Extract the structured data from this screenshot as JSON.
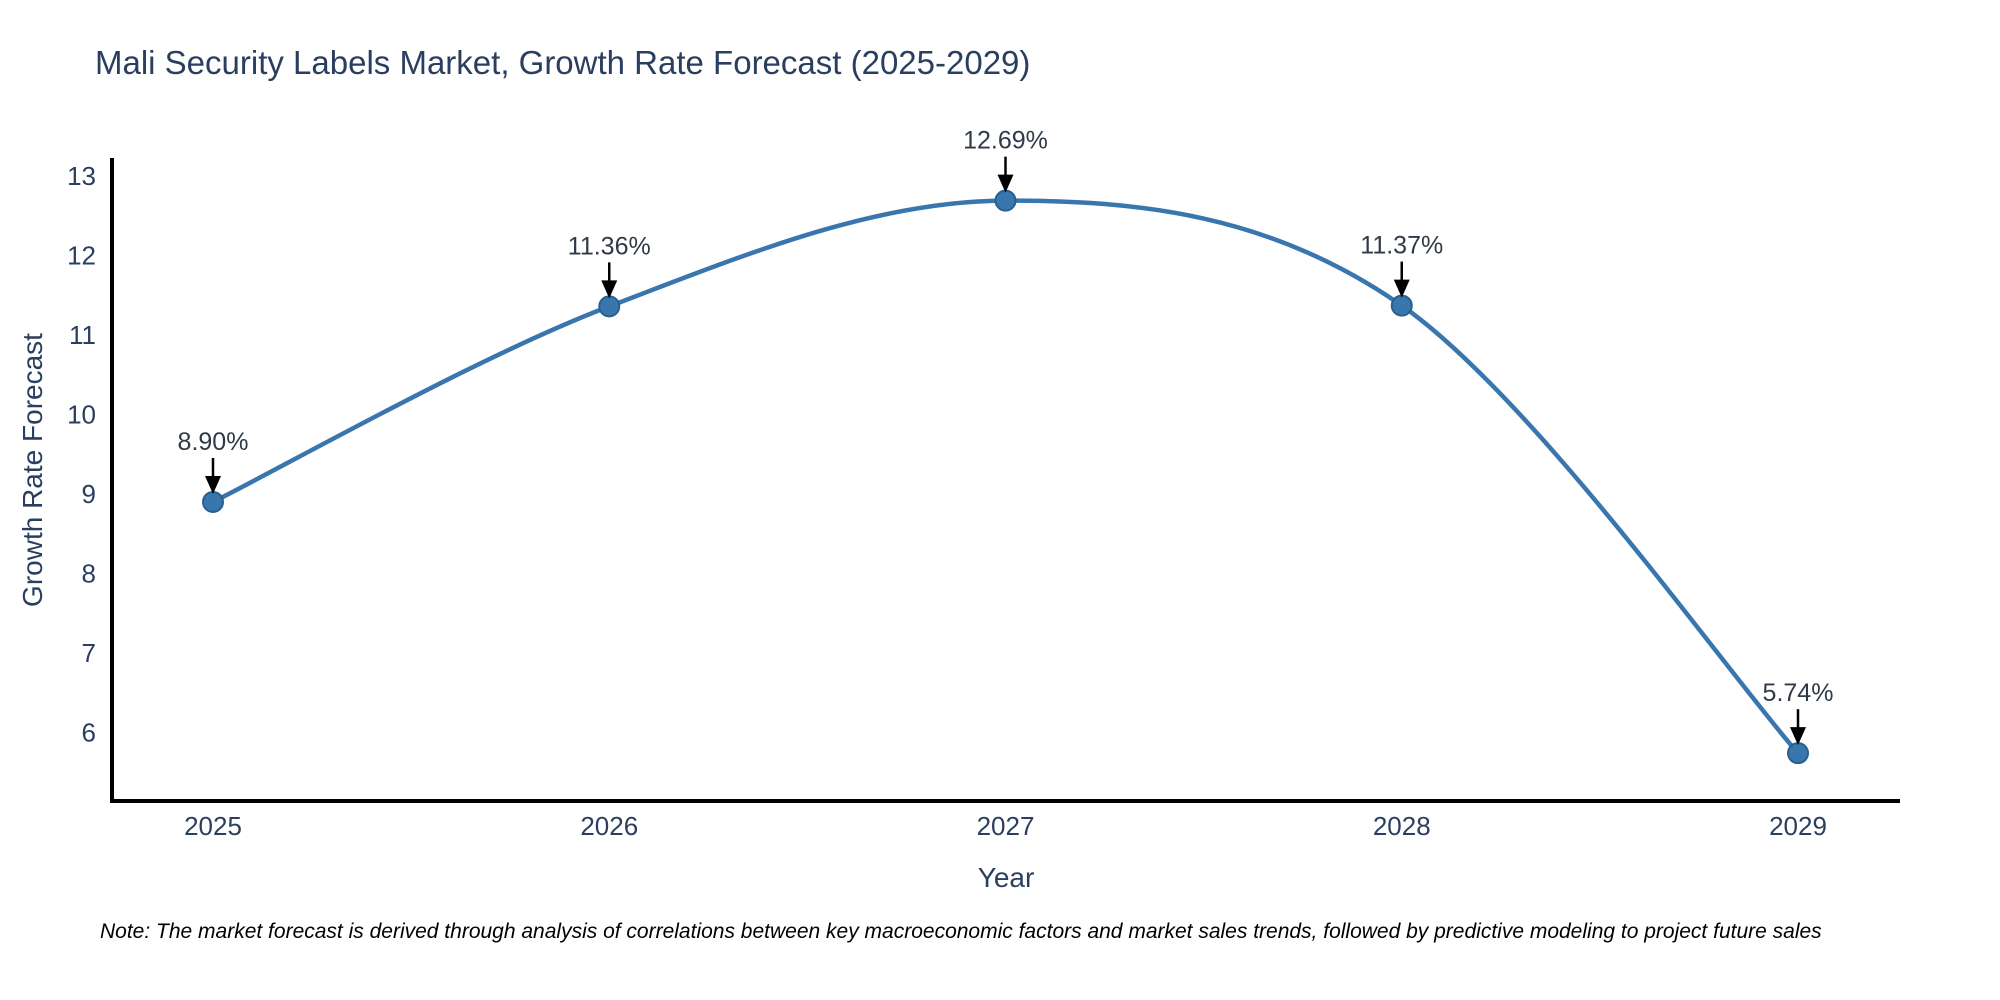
{
  "note": "Note: The market forecast is derived through analysis of correlations between key macroeconomic factors and market sales trends, followed by predictive modeling to project future sales",
  "chart_data": {
    "type": "line",
    "title": "Mali Security Labels Market, Growth Rate Forecast (2025-2029)",
    "xlabel": "Year",
    "ylabel": "Growth Rate Forecast",
    "x": [
      2025,
      2026,
      2027,
      2028,
      2029
    ],
    "series": [
      {
        "name": "Growth Rate Forecast",
        "values": [
          8.9,
          11.36,
          12.69,
          11.37,
          5.74
        ]
      }
    ],
    "point_labels": [
      "8.90%",
      "11.36%",
      "12.69%",
      "11.37%",
      "5.74%"
    ],
    "yticks": [
      6,
      7,
      8,
      9,
      10,
      11,
      12,
      13
    ],
    "ylim": [
      5.15,
      13.2
    ],
    "line_shape": "spline",
    "grid": false,
    "legend": "none",
    "colors": {
      "line": "#3a76ae",
      "marker_fill": "#3a76ae",
      "marker_edge": "#2a5f8e",
      "axis": "#000000",
      "tick_font": "#2a3f5f",
      "annotation_font": "#2f3a47",
      "arrow": "#000000"
    }
  }
}
